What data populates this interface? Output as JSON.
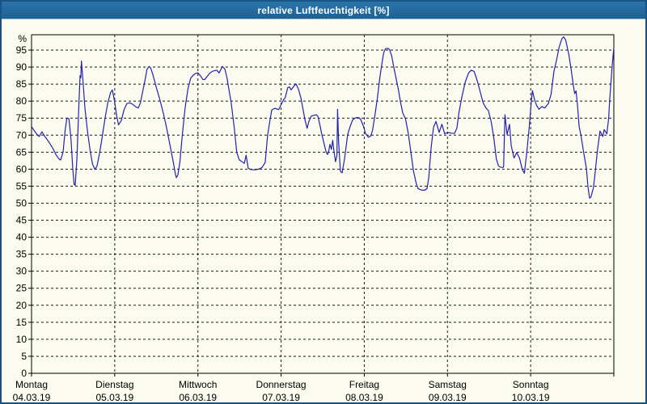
{
  "title_bar": {
    "title": "relative Luftfeuchtigkeit [%]"
  },
  "colors": {
    "panel_border": "#175385",
    "title_bar_bg": "#21689c",
    "title_text": "#ffffff",
    "plot_bg": "#fbfbef",
    "frame": "#000000",
    "grid": "#1a1a1a",
    "axis_text": "#000000",
    "line": "#2222b2"
  },
  "chart_data": {
    "type": "line",
    "title": "relative Luftfeuchtigkeit [%]",
    "xlabel": "",
    "ylabel": "%",
    "ylim": [
      0,
      100
    ],
    "y_ticks": [
      0,
      5,
      10,
      15,
      20,
      25,
      30,
      35,
      40,
      45,
      50,
      55,
      60,
      65,
      70,
      75,
      80,
      85,
      90,
      95
    ],
    "grid": "dashed horizontal at every 5, dashed vertical at each day boundary",
    "legend": "none",
    "x_hours_total": 168,
    "x_days": [
      {
        "name": "Montag",
        "date": "04.03.19"
      },
      {
        "name": "Dienstag",
        "date": "05.03.19"
      },
      {
        "name": "Mittwoch",
        "date": "06.03.19"
      },
      {
        "name": "Donnerstag",
        "date": "07.03.19"
      },
      {
        "name": "Freitag",
        "date": "08.03.19"
      },
      {
        "name": "Samstag",
        "date": "09.03.19"
      },
      {
        "name": "Sonntag",
        "date": "10.03.19"
      }
    ],
    "series": [
      {
        "name": "relative Luftfeuchtigkeit",
        "unit": "%",
        "color": "#2222b2",
        "points": [
          [
            0,
            72.5
          ],
          [
            0.8,
            71.3
          ],
          [
            1.5,
            70.3
          ],
          [
            2.2,
            69.6
          ],
          [
            3,
            71
          ],
          [
            3.7,
            69.8
          ],
          [
            4.5,
            68.7
          ],
          [
            5.3,
            67.5
          ],
          [
            6.2,
            66
          ],
          [
            7.1,
            64.2
          ],
          [
            8,
            62.9
          ],
          [
            8.4,
            62.7
          ],
          [
            9.1,
            65
          ],
          [
            9.7,
            71.5
          ],
          [
            10.2,
            75
          ],
          [
            10.8,
            74.8
          ],
          [
            11.4,
            68.5
          ],
          [
            11.9,
            60
          ],
          [
            12.3,
            55.5
          ],
          [
            12.6,
            55.3
          ],
          [
            13.1,
            63
          ],
          [
            13.7,
            80
          ],
          [
            14,
            87.5
          ],
          [
            14.2,
            86.8
          ],
          [
            14.4,
            91.8
          ],
          [
            14.9,
            85
          ],
          [
            15.4,
            78
          ],
          [
            16.1,
            71.5
          ],
          [
            16.9,
            65.5
          ],
          [
            17.6,
            61.5
          ],
          [
            18.3,
            59.9
          ],
          [
            18.9,
            61
          ],
          [
            19.6,
            64.5
          ],
          [
            20.4,
            69.5
          ],
          [
            21.2,
            75
          ],
          [
            22,
            79.5
          ],
          [
            22.8,
            82.5
          ],
          [
            23.3,
            83.3
          ],
          [
            23.9,
            80.3
          ],
          [
            24.6,
            75.5
          ],
          [
            25.1,
            73
          ],
          [
            25.9,
            74.3
          ],
          [
            26.7,
            77.5
          ],
          [
            27.5,
            79.3
          ],
          [
            28.4,
            79.5
          ],
          [
            29.3,
            79
          ],
          [
            30.1,
            78.3
          ],
          [
            30.8,
            78
          ],
          [
            31.4,
            79.5
          ],
          [
            32.1,
            83
          ],
          [
            32.8,
            86.5
          ],
          [
            33.3,
            89.3
          ],
          [
            33.9,
            90.2
          ],
          [
            34.4,
            89.7
          ],
          [
            35.1,
            87.5
          ],
          [
            36,
            84
          ],
          [
            37,
            80.5
          ],
          [
            38,
            76.5
          ],
          [
            39,
            72
          ],
          [
            40,
            66.8
          ],
          [
            40.9,
            62
          ],
          [
            41.5,
            58.5
          ],
          [
            41.8,
            57.5
          ],
          [
            42.2,
            58.3
          ],
          [
            42.8,
            62
          ],
          [
            43.5,
            70
          ],
          [
            44.3,
            78
          ],
          [
            45.1,
            83.5
          ],
          [
            45.9,
            86.7
          ],
          [
            46.7,
            87.7
          ],
          [
            47.5,
            88.2
          ],
          [
            48,
            88.3
          ],
          [
            48.7,
            87.5
          ],
          [
            49.4,
            86.4
          ],
          [
            49.9,
            86.3
          ],
          [
            50.7,
            87.3
          ],
          [
            51.5,
            88.3
          ],
          [
            52.3,
            88.8
          ],
          [
            53.4,
            89.1
          ],
          [
            54.1,
            88.3
          ],
          [
            55.1,
            90.2
          ],
          [
            55.8,
            89.4
          ],
          [
            56.4,
            86.8
          ],
          [
            57.1,
            82.5
          ],
          [
            57.6,
            79.5
          ],
          [
            58.5,
            72
          ],
          [
            59.2,
            65
          ],
          [
            59.9,
            62.8
          ],
          [
            60.6,
            62.3
          ],
          [
            61.4,
            61.7
          ],
          [
            61.9,
            64.1
          ],
          [
            62.5,
            60.3
          ],
          [
            63.2,
            59.9
          ],
          [
            64.4,
            59.8
          ],
          [
            65.5,
            60
          ],
          [
            66.5,
            60.5
          ],
          [
            67.4,
            62
          ],
          [
            68.1,
            70
          ],
          [
            68.8,
            74.5
          ],
          [
            69.3,
            77.4
          ],
          [
            70.2,
            77.9
          ],
          [
            71.3,
            77.5
          ],
          [
            72,
            79
          ],
          [
            72.7,
            80.4
          ],
          [
            73.2,
            81
          ],
          [
            73.9,
            83.9
          ],
          [
            74.4,
            84.2
          ],
          [
            74.9,
            83.3
          ],
          [
            75.6,
            84.3
          ],
          [
            76.3,
            85.1
          ],
          [
            77,
            83.5
          ],
          [
            77.7,
            81
          ],
          [
            78.4,
            77.2
          ],
          [
            78.9,
            74.5
          ],
          [
            79.5,
            72
          ],
          [
            80,
            74
          ],
          [
            80.7,
            75.6
          ],
          [
            81.4,
            75.8
          ],
          [
            82.1,
            76
          ],
          [
            82.6,
            75.6
          ],
          [
            83.3,
            72.5
          ],
          [
            83.7,
            70.5
          ],
          [
            84.4,
            67.5
          ],
          [
            84.9,
            65.3
          ],
          [
            85.4,
            64.3
          ],
          [
            85.8,
            65.6
          ],
          [
            86.1,
            67.3
          ],
          [
            86.5,
            65.8
          ],
          [
            86.9,
            68.5
          ],
          [
            87.3,
            65
          ],
          [
            87.7,
            62.2
          ],
          [
            88.1,
            64
          ],
          [
            88.3,
            77.6
          ],
          [
            88.6,
            68
          ],
          [
            89.1,
            59.4
          ],
          [
            89.6,
            58.9
          ],
          [
            90.3,
            63
          ],
          [
            91.2,
            70.2
          ],
          [
            91.9,
            72.5
          ],
          [
            92.6,
            74.4
          ],
          [
            93.3,
            75
          ],
          [
            93.9,
            75.2
          ],
          [
            94.5,
            75.1
          ],
          [
            95,
            74.6
          ],
          [
            95.7,
            72.8
          ],
          [
            96.4,
            70.4
          ],
          [
            97.2,
            69.4
          ],
          [
            97.9,
            69.8
          ],
          [
            98.4,
            71.5
          ],
          [
            99.1,
            76
          ],
          [
            99.8,
            81
          ],
          [
            100.5,
            87
          ],
          [
            101,
            90.5
          ],
          [
            101.6,
            94.2
          ],
          [
            102.1,
            95.4
          ],
          [
            102.8,
            95.5
          ],
          [
            103.3,
            95.2
          ],
          [
            103.9,
            93.3
          ],
          [
            104.5,
            90
          ],
          [
            105.2,
            86.5
          ],
          [
            105.9,
            83
          ],
          [
            106.4,
            80
          ],
          [
            107.1,
            76.5
          ],
          [
            107.9,
            74.8
          ],
          [
            108.7,
            70.4
          ],
          [
            109.4,
            65.2
          ],
          [
            110.2,
            59.4
          ],
          [
            111,
            55.8
          ],
          [
            111.5,
            54.3
          ],
          [
            112.4,
            53.9
          ],
          [
            113.4,
            53.8
          ],
          [
            114.1,
            54.3
          ],
          [
            114.6,
            57.4
          ],
          [
            115.3,
            66.4
          ],
          [
            116,
            72.4
          ],
          [
            116.7,
            74
          ],
          [
            117.6,
            70.8
          ],
          [
            118.4,
            73.2
          ],
          [
            119.2,
            70.4
          ],
          [
            120,
            70.8
          ],
          [
            121,
            70.6
          ],
          [
            122,
            70.5
          ],
          [
            122.7,
            72
          ],
          [
            123.3,
            76.5
          ],
          [
            124.1,
            81
          ],
          [
            125.1,
            85.5
          ],
          [
            126.1,
            88.3
          ],
          [
            126.9,
            89.1
          ],
          [
            127.7,
            88.7
          ],
          [
            128.6,
            86
          ],
          [
            129.5,
            82.5
          ],
          [
            130.3,
            79.5
          ],
          [
            131.1,
            78
          ],
          [
            131.8,
            77.2
          ],
          [
            132.6,
            74
          ],
          [
            133.4,
            69
          ],
          [
            134.1,
            63
          ],
          [
            134.7,
            61
          ],
          [
            135.2,
            60.6
          ],
          [
            136,
            60.5
          ],
          [
            136.2,
            60.8
          ],
          [
            136.6,
            76
          ],
          [
            137.2,
            70.1
          ],
          [
            137.9,
            73.2
          ],
          [
            138.4,
            66.9
          ],
          [
            139.2,
            63.3
          ],
          [
            140,
            64.9
          ],
          [
            140.8,
            63.2
          ],
          [
            141.6,
            59.8
          ],
          [
            142.2,
            58.8
          ],
          [
            142.9,
            65
          ],
          [
            143.6,
            72.4
          ],
          [
            144.2,
            80
          ],
          [
            144.5,
            83.1
          ],
          [
            145.1,
            80.5
          ],
          [
            145.7,
            78.8
          ],
          [
            146.4,
            77.6
          ],
          [
            147.2,
            78.4
          ],
          [
            148.1,
            78
          ],
          [
            149.1,
            79.3
          ],
          [
            149.9,
            82
          ],
          [
            150.7,
            88.7
          ],
          [
            151.5,
            92.2
          ],
          [
            152.2,
            95.8
          ],
          [
            153,
            98.3
          ],
          [
            153.5,
            98.9
          ],
          [
            154.1,
            98
          ],
          [
            155,
            93.8
          ],
          [
            155.7,
            89.1
          ],
          [
            156.3,
            84.7
          ],
          [
            156.7,
            82.2
          ],
          [
            157.1,
            83
          ],
          [
            157.5,
            79
          ],
          [
            158,
            72.5
          ],
          [
            158.5,
            70
          ],
          [
            159.3,
            64.9
          ],
          [
            160.1,
            60.2
          ],
          [
            160.5,
            55
          ],
          [
            161,
            51.5
          ],
          [
            161.4,
            51.8
          ],
          [
            162.1,
            54.5
          ],
          [
            162.5,
            57.8
          ],
          [
            163.2,
            64.9
          ],
          [
            164,
            71.2
          ],
          [
            164.8,
            69.6
          ],
          [
            165.2,
            71.6
          ],
          [
            166,
            70.4
          ],
          [
            166.5,
            75
          ],
          [
            166.8,
            80.5
          ],
          [
            167.5,
            90.3
          ],
          [
            168,
            95.8
          ]
        ]
      }
    ]
  }
}
